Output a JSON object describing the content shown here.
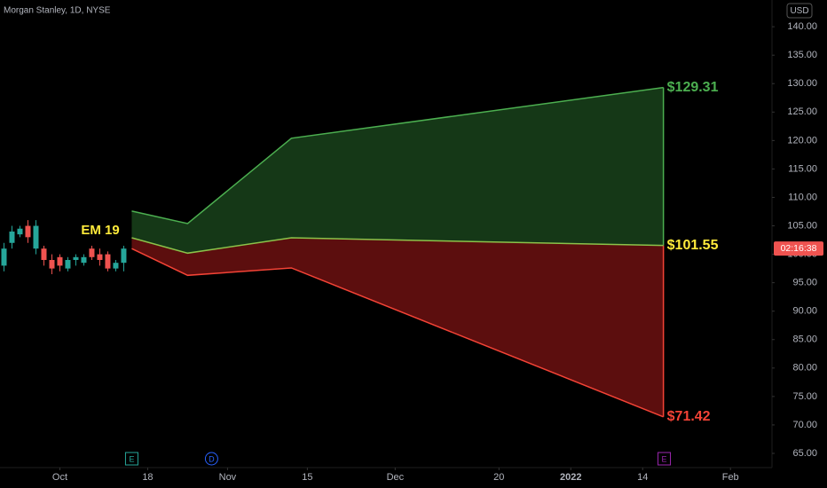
{
  "chart_data": {
    "type": "candlestick",
    "title": "Morgan Stanley, 1D, NYSE",
    "currency": "USD",
    "annotation": "EM 19",
    "countdown": "02:16:38",
    "xlim": [
      -7.5,
      89.2
    ],
    "ylim": [
      62.5,
      144.7
    ],
    "xticks": [
      {
        "value": 0,
        "label": "Oct"
      },
      {
        "value": 11,
        "label": "18"
      },
      {
        "value": 21,
        "label": "Nov"
      },
      {
        "value": 31,
        "label": "15"
      },
      {
        "value": 42,
        "label": "Dec"
      },
      {
        "value": 55,
        "label": "20"
      },
      {
        "value": 64,
        "label": "2022",
        "bold": true
      },
      {
        "value": 73,
        "label": "14"
      },
      {
        "value": 84,
        "label": "Feb"
      }
    ],
    "yticks": [
      {
        "value": 65,
        "label": "65.00"
      },
      {
        "value": 70,
        "label": "70.00"
      },
      {
        "value": 75,
        "label": "75.00"
      },
      {
        "value": 80,
        "label": "80.00"
      },
      {
        "value": 85,
        "label": "85.00"
      },
      {
        "value": 90,
        "label": "90.00"
      },
      {
        "value": 95,
        "label": "95.00"
      },
      {
        "value": 100,
        "label": "100.00"
      },
      {
        "value": 105,
        "label": "105.00"
      },
      {
        "value": 110,
        "label": "110.00"
      },
      {
        "value": 115,
        "label": "115.00"
      },
      {
        "value": 120,
        "label": "120.00"
      },
      {
        "value": 125,
        "label": "125.00"
      },
      {
        "value": 130,
        "label": "130.00"
      },
      {
        "value": 135,
        "label": "135.00"
      },
      {
        "value": 140,
        "label": "140.00"
      }
    ],
    "grid": false,
    "up_color": "#26a69a",
    "down_color": "#ef5350",
    "candles": {
      "x": [
        -7,
        -6,
        -5,
        -4,
        -3,
        -2,
        -1,
        0,
        1,
        2,
        3,
        4,
        5,
        6,
        7,
        8
      ],
      "open": [
        98,
        102,
        103.5,
        105,
        101,
        101,
        99,
        99.5,
        97.5,
        99,
        98.5,
        101,
        100,
        100,
        97.5,
        98.5
      ],
      "high": [
        102,
        105,
        105,
        106,
        106,
        101.5,
        100,
        100,
        99.5,
        100,
        100,
        101.5,
        101,
        100.5,
        99,
        101.5
      ],
      "low": [
        97,
        101,
        103,
        102,
        100,
        98,
        96.5,
        97,
        97,
        98,
        98,
        99,
        98,
        97,
        97,
        97
      ],
      "close": [
        101,
        104,
        104.5,
        103,
        105,
        99,
        97.5,
        98,
        99,
        99.5,
        99.5,
        99.5,
        99,
        97.5,
        98.5,
        101
      ]
    },
    "bands": [
      {
        "color": "#4caf50",
        "x": [
          9,
          16,
          29,
          75.6
        ],
        "values": [
          107.6,
          105.4,
          120.4,
          129.31
        ],
        "end_label": "$129.31",
        "label_color": "#4caf50"
      },
      {
        "color": "#8bc34a",
        "x": [
          9,
          16,
          29,
          75.6
        ],
        "values": [
          102.9,
          100.2,
          102.9,
          101.55
        ],
        "end_label": "$101.55",
        "label_color": "#ffeb3b"
      },
      {
        "color": "#f44336",
        "x": [
          9,
          16,
          29,
          75.6
        ],
        "values": [
          101.0,
          96.3,
          97.6,
          71.42
        ],
        "end_label": "$71.42",
        "label_color": "#f44336"
      }
    ],
    "upper_fill": "rgba(46,125,50,0.45)",
    "lower_fill": "rgba(183,28,28,0.5)",
    "events": [
      {
        "x": 9,
        "label": "E",
        "color": "#26a69a"
      },
      {
        "x": 19,
        "label": "D",
        "color": "#2962ff"
      },
      {
        "x": 75.7,
        "label": "E",
        "color": "#9c27b0"
      }
    ]
  }
}
